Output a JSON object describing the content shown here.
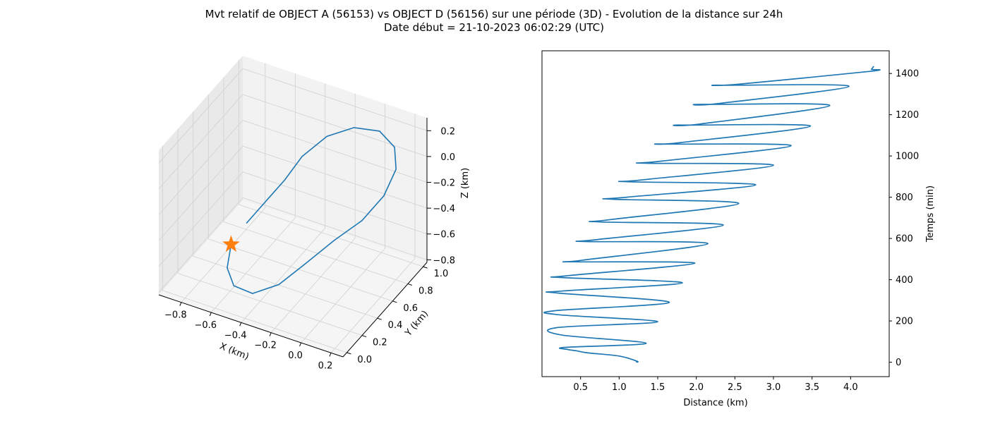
{
  "figure": {
    "title_line1": "Mvt relatif de OBJECT A (56153) vs OBJECT D (56156) sur une période (3D) - Evolution de la distance sur 24h",
    "title_line2": "Date début = 21-10-2023 06:02:29 (UTC)"
  },
  "colors": {
    "series": "#1f77b4",
    "marker": "#ff7f0e",
    "pane": "#f2f2f2",
    "grid": "#d0d0d0"
  },
  "chart_data": [
    {
      "type": "line",
      "projection": "3d",
      "xlabel": "X (km)",
      "ylabel": "Y (km)",
      "zlabel": "Z (km)",
      "xlim": [
        -0.95,
        0.28
      ],
      "ylim": [
        -0.05,
        1.05
      ],
      "zlim": [
        -0.82,
        0.3
      ],
      "xticks": [
        -0.8,
        -0.6,
        -0.4,
        -0.2,
        0.0,
        0.2
      ],
      "xtick_labels": [
        "−0.8",
        "−0.6",
        "−0.4",
        "−0.2",
        "0.0",
        "0.2"
      ],
      "yticks": [
        0.0,
        0.2,
        0.4,
        0.6,
        0.8,
        1.0
      ],
      "ytick_labels": [
        "0.0",
        "0.2",
        "0.4",
        "0.6",
        "0.8",
        "1.0"
      ],
      "zticks": [
        0.2,
        0.0,
        -0.2,
        -0.4,
        -0.6,
        -0.8
      ],
      "ztick_labels": [
        "0.2",
        "0.0",
        "−0.2",
        "−0.4",
        "−0.6",
        "−0.8"
      ],
      "grid": true,
      "marker": {
        "shape": "star",
        "x": -0.62,
        "y": 0.25,
        "z": -0.5
      },
      "series": [
        {
          "x": [
            -0.62,
            -0.58,
            -0.5,
            -0.38,
            -0.25,
            -0.15,
            -0.05,
            0.05,
            0.12,
            0.15,
            0.13,
            0.05,
            -0.08,
            -0.22,
            -0.35,
            -0.45,
            -0.55,
            -0.62
          ],
          "y": [
            0.25,
            0.12,
            0.05,
            0.06,
            0.15,
            0.3,
            0.48,
            0.65,
            0.8,
            0.9,
            0.92,
            0.88,
            0.8,
            0.72,
            0.65,
            0.62,
            0.55,
            0.45
          ],
          "z": [
            -0.5,
            -0.58,
            -0.64,
            -0.66,
            -0.6,
            -0.5,
            -0.4,
            -0.32,
            -0.2,
            -0.05,
            0.1,
            0.22,
            0.25,
            0.18,
            0.02,
            -0.18,
            -0.35,
            -0.47
          ]
        }
      ]
    },
    {
      "type": "line",
      "xlabel": "Distance (km)",
      "ylabel": "Temps (min)",
      "xlim": [
        0.0,
        4.5
      ],
      "ylim": [
        -70,
        1510
      ],
      "xticks": [
        0.5,
        1.0,
        1.5,
        2.0,
        2.5,
        3.0,
        3.5,
        4.0
      ],
      "xtick_labels": [
        "0.5",
        "1.0",
        "1.5",
        "2.0",
        "2.5",
        "3.0",
        "3.5",
        "4.0"
      ],
      "yticks": [
        0,
        200,
        400,
        600,
        800,
        1000,
        1200,
        1400
      ],
      "ytick_labels": [
        "0",
        "200",
        "400",
        "600",
        "800",
        "1000",
        "1200",
        "1400"
      ],
      "yaxis_side": "right",
      "grid": false,
      "series": [
        {
          "x": [
            1.22,
            1.23,
            1.0,
            0.6,
            0.45,
            0.33,
            0.3,
            1.35,
            0.25,
            0.2,
            1.5,
            0.22,
            0.18,
            1.65,
            0.22,
            0.26,
            1.82,
            0.28,
            0.35,
            1.98,
            0.42,
            0.53,
            2.15,
            0.58,
            0.72,
            2.35,
            0.75,
            0.9,
            2.55,
            0.92,
            1.1,
            2.77,
            1.12,
            1.32,
            3.0,
            1.35,
            1.55,
            3.23,
            1.58,
            1.8,
            3.48,
            1.82,
            2.05,
            3.73,
            2.08,
            2.3,
            3.98,
            2.32,
            2.55,
            4.25,
            4.27,
            4.3
          ],
          "y": [
            0,
            5,
            30,
            45,
            55,
            62,
            72,
            92,
            132,
            168,
            196,
            230,
            250,
            290,
            335,
            345,
            385,
            410,
            420,
            480,
            487,
            495,
            575,
            585,
            595,
            665,
            680,
            692,
            770,
            790,
            800,
            860,
            875,
            885,
            955,
            965,
            975,
            1050,
            1058,
            1065,
            1145,
            1150,
            1155,
            1245,
            1250,
            1255,
            1338,
            1343,
            1348,
            1410,
            1420,
            1435
          ]
        }
      ]
    }
  ]
}
